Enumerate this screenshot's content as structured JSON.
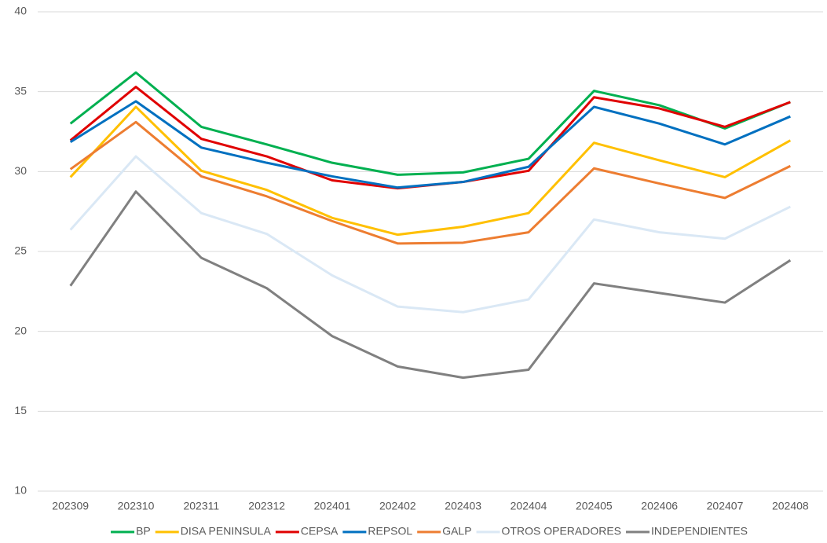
{
  "chart_data": {
    "type": "line",
    "categories": [
      "202309",
      "202310",
      "202311",
      "202312",
      "202401",
      "202402",
      "202403",
      "202404",
      "202405",
      "202406",
      "202407",
      "202408"
    ],
    "series": [
      {
        "name": "BP",
        "color": "#00b050",
        "values": [
          33.0,
          36.2,
          32.8,
          31.7,
          30.55,
          29.8,
          29.95,
          30.8,
          35.05,
          34.15,
          32.7,
          34.35
        ]
      },
      {
        "name": "DISA PENINSULA",
        "color": "#ffc000",
        "values": [
          29.65,
          34.05,
          30.05,
          28.85,
          27.1,
          26.05,
          26.55,
          27.4,
          31.8,
          30.7,
          29.65,
          31.95
        ]
      },
      {
        "name": "CEPSA",
        "color": "#e00000",
        "values": [
          31.95,
          35.3,
          32.05,
          30.95,
          29.45,
          28.95,
          29.35,
          30.05,
          34.65,
          33.95,
          32.8,
          34.35
        ]
      },
      {
        "name": "REPSOL",
        "color": "#0070c0",
        "values": [
          31.85,
          34.4,
          31.5,
          30.55,
          29.7,
          29.0,
          29.35,
          30.3,
          34.05,
          33.0,
          31.7,
          33.45
        ]
      },
      {
        "name": "GALP",
        "color": "#ed7d31",
        "values": [
          30.15,
          33.1,
          29.7,
          28.45,
          26.9,
          25.5,
          25.55,
          26.2,
          30.2,
          29.25,
          28.35,
          30.35
        ]
      },
      {
        "name": "OTROS OPERADORES",
        "color": "#dae8f5",
        "values": [
          26.35,
          30.95,
          27.4,
          26.1,
          23.5,
          21.55,
          21.2,
          22.0,
          27.0,
          26.2,
          25.8,
          27.8
        ]
      },
      {
        "name": "INDEPENDIENTES",
        "color": "#808080",
        "values": [
          22.85,
          28.75,
          24.6,
          22.7,
          19.7,
          17.8,
          17.1,
          17.6,
          23.0,
          22.4,
          21.8,
          24.45
        ]
      }
    ],
    "ylim": [
      10,
      40
    ],
    "yticks": [
      10,
      15,
      20,
      25,
      30,
      35,
      40
    ],
    "grid": true,
    "legend": "bottom"
  }
}
